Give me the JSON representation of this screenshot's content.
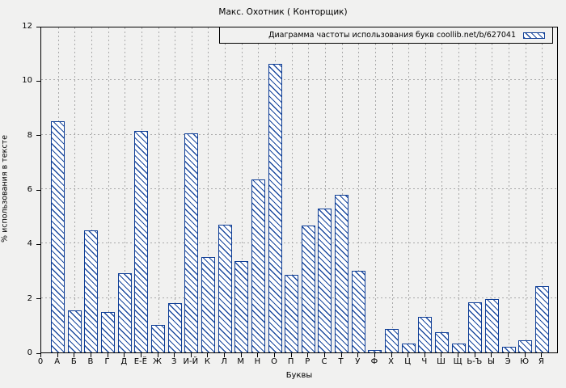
{
  "title": "Макс. Охотник ( Конторщик)",
  "legend": {
    "label": "Диаграмма частоты использования букв coollib.net/b/627041",
    "swatch_icon": "hatched-bar-sample"
  },
  "y_axis": {
    "label": "% использования в тексте",
    "ticks": [
      0,
      2,
      4,
      6,
      8,
      10,
      12
    ],
    "gridline_values": [
      2,
      4,
      6,
      8,
      10
    ]
  },
  "x_axis": {
    "label": "Буквы",
    "origin_label": "0"
  },
  "colors": {
    "background": "#f1f1f0",
    "bar_border": "#0f3e96",
    "bar_hatch": "#1c4a9e",
    "bar_fill": "#ffffff",
    "gridline": "#a9a9a9",
    "axis": "#000000"
  },
  "chart_data": {
    "type": "bar",
    "title": "Макс. Охотник ( Конторщик)",
    "xlabel": "Буквы",
    "ylabel": "% использования в тексте",
    "ylim": [
      0,
      12
    ],
    "grid": true,
    "legend_position": "top-right",
    "hatch_style": "diagonal-backslash",
    "categories": [
      "А",
      "Б",
      "В",
      "Г",
      "Д",
      "Е-Ё",
      "Ж",
      "З",
      "И-Й",
      "К",
      "Л",
      "М",
      "Н",
      "О",
      "П",
      "Р",
      "С",
      "Т",
      "У",
      "Ф",
      "Х",
      "Ц",
      "Ч",
      "Ш",
      "Щ",
      "Ь-Ъ",
      "Ы",
      "Э",
      "Ю",
      "Я"
    ],
    "values": [
      8.5,
      1.55,
      4.5,
      1.5,
      2.9,
      8.15,
      1.0,
      1.8,
      8.05,
      3.5,
      4.7,
      3.35,
      6.35,
      10.6,
      2.85,
      4.65,
      5.3,
      5.8,
      3.0,
      0.1,
      0.85,
      0.33,
      1.3,
      0.75,
      0.33,
      1.85,
      1.95,
      0.2,
      0.45,
      2.45
    ]
  }
}
